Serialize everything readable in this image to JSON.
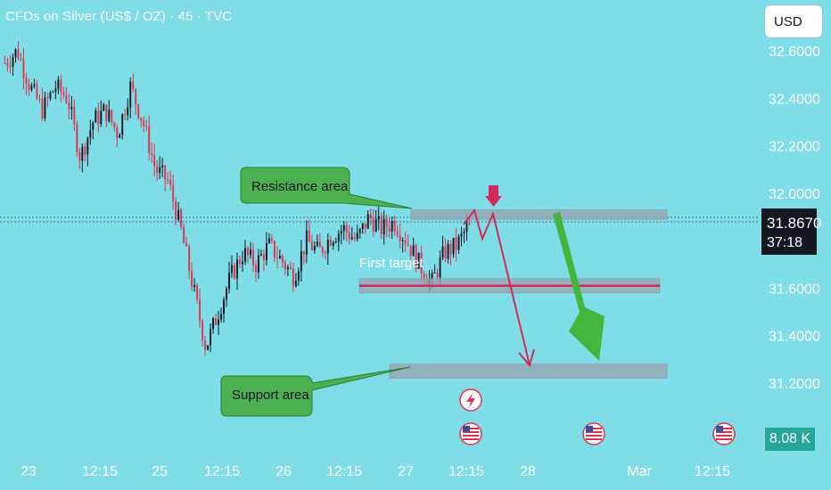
{
  "header": {
    "title": "CFDs on Silver (US$ / OZ) · 45 · TVC"
  },
  "currency": "USD",
  "last_price": {
    "price": "31.8670",
    "countdown": "37:18"
  },
  "volume_label": "8.08 K",
  "chart_data": {
    "type": "candlestick",
    "symbol": "CFDs on Silver (US$ / OZ)",
    "interval": "45",
    "y_ticks": [
      32.6,
      32.4,
      32.2,
      32.0,
      31.6,
      31.4,
      31.2
    ],
    "y_tick_labels": [
      "32.6000",
      "32.4000",
      "32.2000",
      "32.0000",
      "31.6000",
      "31.4000",
      "31.2000"
    ],
    "x_tick_labels": [
      "23",
      "12:15",
      "25",
      "12:15",
      "26",
      "12:15",
      "27",
      "12:15",
      "28",
      "Mar",
      "12:15"
    ],
    "ylim": [
      31.02,
      32.7
    ],
    "current_price": 31.867,
    "trend_path": [
      32.55,
      32.6,
      32.45,
      32.35,
      32.45,
      32.4,
      32.15,
      32.3,
      32.35,
      32.25,
      32.45,
      32.3,
      32.1,
      32.05,
      31.85,
      31.6,
      31.35,
      31.5,
      31.65,
      31.75,
      31.7,
      31.78,
      31.72,
      31.65,
      31.8,
      31.75,
      31.82,
      31.85,
      31.8,
      31.9,
      31.85,
      31.88,
      31.8,
      31.7,
      31.62,
      31.75,
      31.78,
      31.87
    ],
    "zones": [
      {
        "name": "Resistance area",
        "price_top": 31.93,
        "price_bottom": 31.89
      },
      {
        "name": "First target",
        "price_top": 31.64,
        "price_bottom": 31.58,
        "line": 31.61
      },
      {
        "name": "Support area",
        "price_top": 31.28,
        "price_bottom": 31.22
      }
    ],
    "annotations": [
      "Resistance area",
      "First target",
      "Support area"
    ],
    "colors": {
      "up": "#131722",
      "down": "#e0344e",
      "zone": "#9aa3ae",
      "callout": "#4caf50",
      "arrow_red": "#d1295c",
      "arrow_green": "#43b53c"
    }
  }
}
